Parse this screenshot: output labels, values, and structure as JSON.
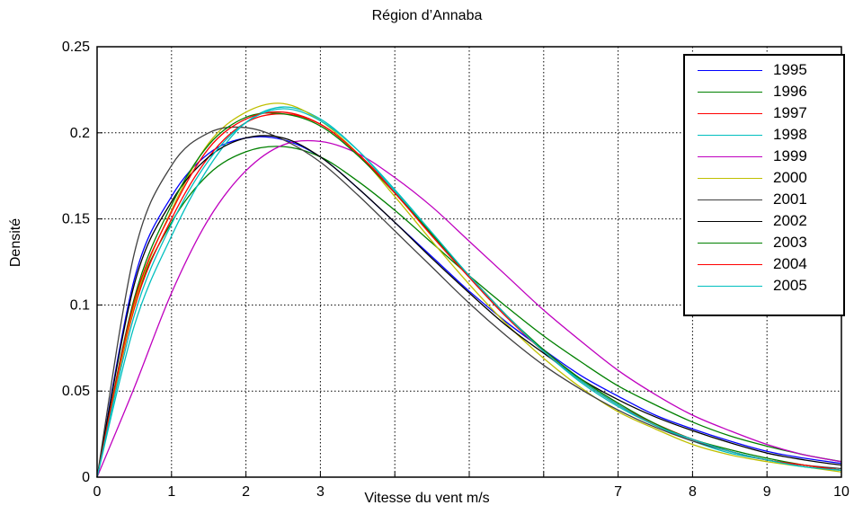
{
  "chart_data": {
    "type": "line",
    "title": "Région d’Annaba",
    "xlabel": "Vitesse du vent m/s",
    "ylabel": "Densité",
    "xlim": [
      0,
      10
    ],
    "ylim": [
      0,
      0.25
    ],
    "xticks": [
      0,
      1,
      2,
      3,
      4,
      5,
      6,
      7,
      8,
      9,
      10
    ],
    "xtick_labels": [
      "0",
      "1",
      "2",
      "3",
      "",
      "",
      "",
      "7",
      "8",
      "9",
      "10"
    ],
    "yticks": [
      0,
      0.05,
      0.1,
      0.15,
      0.2,
      0.25
    ],
    "ytick_labels": [
      "0",
      "0.05",
      "0.1",
      "0.15",
      "0.2",
      "0.25"
    ],
    "grid": true,
    "legend_position": "top-right",
    "x": [
      0,
      0.5,
      1,
      1.5,
      2,
      2.5,
      3,
      3.5,
      4,
      4.5,
      5,
      5.5,
      6,
      6.5,
      7,
      7.5,
      8,
      8.5,
      9,
      9.5,
      10
    ],
    "series": [
      {
        "name": "1995",
        "color": "#0000ff",
        "values": [
          0,
          0.115,
          0.163,
          0.188,
          0.197,
          0.196,
          0.186,
          0.168,
          0.148,
          0.128,
          0.108,
          0.09,
          0.074,
          0.059,
          0.047,
          0.036,
          0.028,
          0.021,
          0.015,
          0.011,
          0.008
        ]
      },
      {
        "name": "1996",
        "color": "#008000",
        "values": [
          0,
          0.1,
          0.148,
          0.176,
          0.189,
          0.192,
          0.186,
          0.172,
          0.155,
          0.136,
          0.117,
          0.099,
          0.082,
          0.067,
          0.053,
          0.042,
          0.032,
          0.024,
          0.018,
          0.013,
          0.009
        ]
      },
      {
        "name": "1997",
        "color": "#ff0000",
        "values": [
          0,
          0.098,
          0.15,
          0.186,
          0.206,
          0.211,
          0.205,
          0.188,
          0.166,
          0.141,
          0.117,
          0.094,
          0.073,
          0.056,
          0.042,
          0.031,
          0.022,
          0.015,
          0.01,
          0.007,
          0.004
        ]
      },
      {
        "name": "1998",
        "color": "#00bfbf",
        "values": [
          0,
          0.088,
          0.14,
          0.18,
          0.206,
          0.215,
          0.208,
          0.19,
          0.166,
          0.141,
          0.116,
          0.093,
          0.073,
          0.055,
          0.041,
          0.03,
          0.021,
          0.014,
          0.01,
          0.006,
          0.004
        ]
      },
      {
        "name": "1999",
        "color": "#bf00bf",
        "values": [
          0,
          0.052,
          0.107,
          0.15,
          0.178,
          0.193,
          0.195,
          0.188,
          0.174,
          0.157,
          0.137,
          0.117,
          0.097,
          0.079,
          0.062,
          0.048,
          0.036,
          0.027,
          0.019,
          0.013,
          0.009
        ]
      },
      {
        "name": "2000",
        "color": "#bfbf00",
        "values": [
          0,
          0.1,
          0.155,
          0.194,
          0.212,
          0.217,
          0.207,
          0.188,
          0.163,
          0.137,
          0.112,
          0.089,
          0.069,
          0.052,
          0.038,
          0.028,
          0.019,
          0.013,
          0.009,
          0.006,
          0.003
        ]
      },
      {
        "name": "2001",
        "color": "#404040",
        "values": [
          0,
          0.13,
          0.181,
          0.2,
          0.203,
          0.196,
          0.183,
          0.164,
          0.143,
          0.122,
          0.101,
          0.082,
          0.065,
          0.051,
          0.039,
          0.029,
          0.021,
          0.015,
          0.01,
          0.007,
          0.005
        ]
      },
      {
        "name": "2002",
        "color": "#000000",
        "values": [
          0,
          0.112,
          0.16,
          0.186,
          0.197,
          0.197,
          0.186,
          0.168,
          0.148,
          0.127,
          0.107,
          0.088,
          0.072,
          0.057,
          0.045,
          0.035,
          0.027,
          0.02,
          0.014,
          0.01,
          0.007
        ]
      },
      {
        "name": "2003",
        "color": "#008000",
        "values": [
          0,
          0.104,
          0.158,
          0.193,
          0.209,
          0.211,
          0.204,
          0.187,
          0.165,
          0.141,
          0.117,
          0.094,
          0.074,
          0.057,
          0.043,
          0.031,
          0.022,
          0.016,
          0.011,
          0.007,
          0.004
        ]
      },
      {
        "name": "2004",
        "color": "#ff0000",
        "values": [
          0,
          0.102,
          0.154,
          0.191,
          0.208,
          0.212,
          0.205,
          0.188,
          0.165,
          0.14,
          0.116,
          0.093,
          0.073,
          0.056,
          0.042,
          0.03,
          0.022,
          0.015,
          0.01,
          0.007,
          0.004
        ]
      },
      {
        "name": "2005",
        "color": "#00bfbf",
        "values": [
          0,
          0.094,
          0.147,
          0.184,
          0.206,
          0.214,
          0.207,
          0.19,
          0.167,
          0.142,
          0.117,
          0.094,
          0.073,
          0.056,
          0.042,
          0.03,
          0.022,
          0.015,
          0.01,
          0.006,
          0.004
        ]
      }
    ]
  }
}
